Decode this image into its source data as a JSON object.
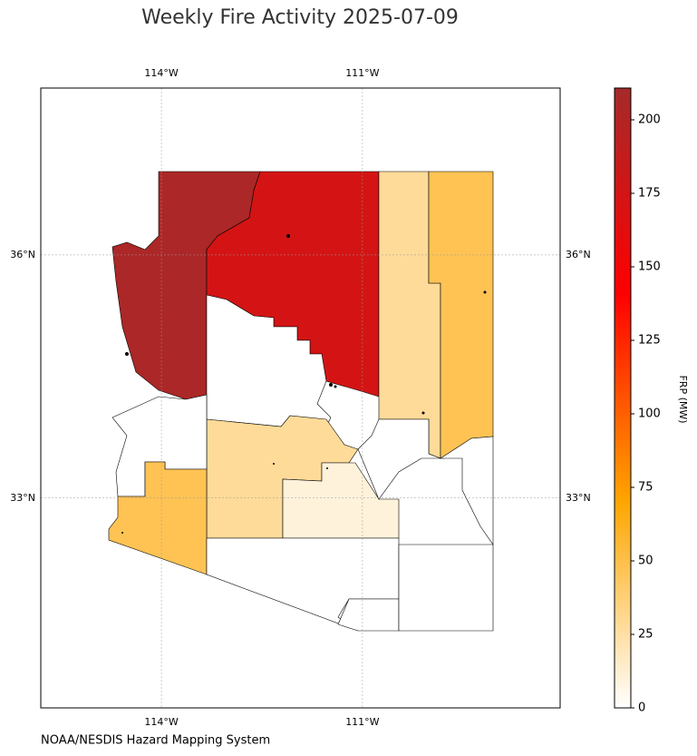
{
  "title": "Weekly Fire Activity 2025-07-09",
  "source": "NOAA/NESDIS Hazard Mapping System",
  "map": {
    "xlim": [
      -115.8,
      -108.05
    ],
    "ylim": [
      30.41,
      38.06
    ],
    "xticks": [
      {
        "value": -114,
        "label": "114°W"
      },
      {
        "value": -111,
        "label": "111°W"
      }
    ],
    "yticks": [
      {
        "value": 36,
        "label": "36°N"
      },
      {
        "value": 33,
        "label": "33°N"
      }
    ],
    "grid": true,
    "values": [
      205,
      174,
      28,
      47,
      0,
      28,
      10,
      0,
      47,
      0,
      0,
      0,
      0,
      0
    ]
  },
  "colorbar": {
    "label": "FRP (MW)",
    "ylim": [
      0,
      210.8
    ],
    "yticks": [
      0,
      25,
      50,
      75,
      100,
      125,
      150,
      175,
      200
    ],
    "colors": [
      "#ffffff",
      "#ffa500",
      "#ff0000",
      "#a52a2a"
    ]
  }
}
